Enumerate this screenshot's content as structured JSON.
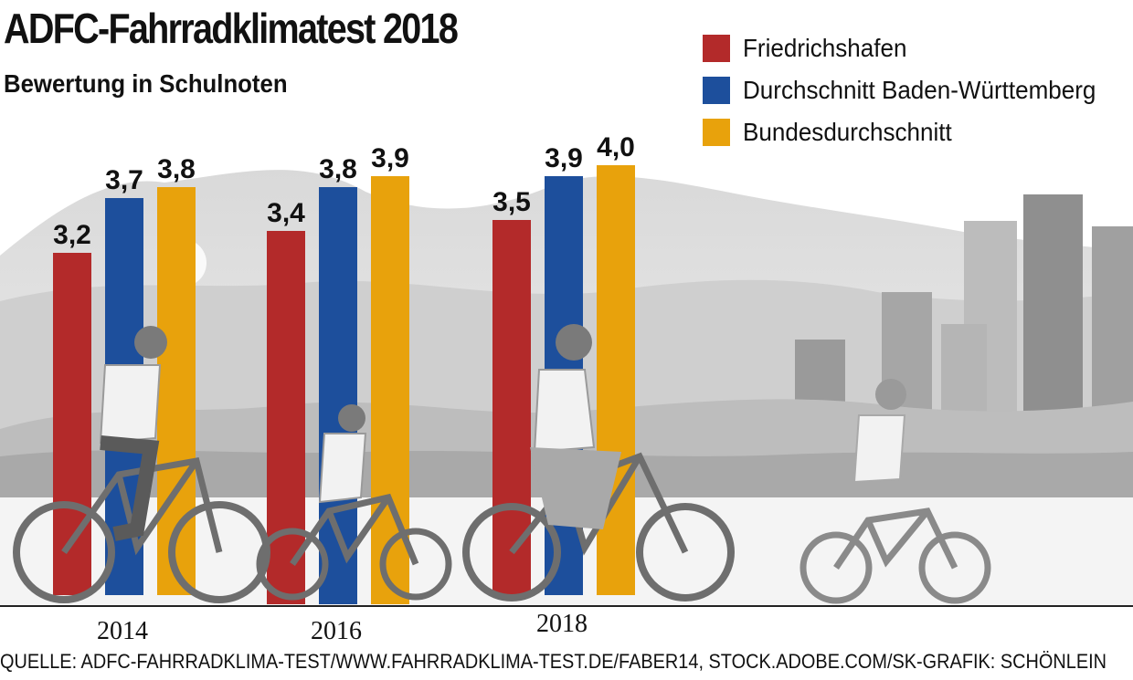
{
  "title": "ADFC-Fahrradklimatest 2018",
  "subtitle": "Bewertung in Schulnoten",
  "source": "QUELLE: ADFC-FAHRRADKLIMA-TEST/WWW.FAHRRADKLIMA-TEST.DE/FABER14, STOCK.ADOBE.COM/SK-GRAFIK: SCHÖNLEIN",
  "colors": {
    "friedrichshafen": "#b32a2a",
    "baden_wuerttemberg": "#1d4f9c",
    "bund": "#e8a20c"
  },
  "chart_data": {
    "type": "bar",
    "title": "ADFC-Fahrradklimatest 2018",
    "subtitle": "Bewertung in Schulnoten",
    "categories": [
      "2014",
      "2016",
      "2018"
    ],
    "series": [
      {
        "name": "Friedrichshafen",
        "values": [
          3.2,
          3.4,
          3.5
        ],
        "labels": [
          "3,2",
          "3,4",
          "3,5"
        ],
        "color": "#b32a2a"
      },
      {
        "name": "Durchschnitt Baden-Württemberg",
        "values": [
          3.7,
          3.8,
          3.9
        ],
        "labels": [
          "3,7",
          "3,8",
          "3,9"
        ],
        "color": "#1d4f9c"
      },
      {
        "name": "Bundesdurchschnitt",
        "values": [
          3.8,
          3.9,
          4.0
        ],
        "labels": [
          "3,8",
          "3,9",
          "4,0"
        ],
        "color": "#e8a20c"
      }
    ],
    "legend_position": "top-right",
    "grid": false,
    "xlabel": "",
    "ylabel": ""
  }
}
